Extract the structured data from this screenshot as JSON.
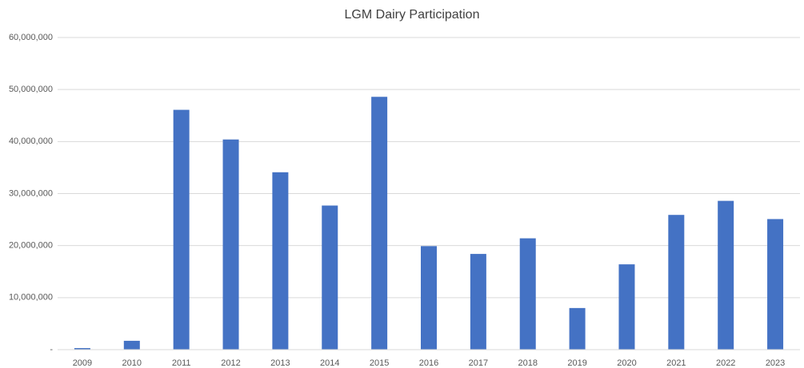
{
  "chart_data": {
    "type": "bar",
    "title": "LGM Dairy Participation",
    "categories": [
      "2009",
      "2010",
      "2011",
      "2012",
      "2013",
      "2014",
      "2015",
      "2016",
      "2017",
      "2018",
      "2019",
      "2020",
      "2021",
      "2022",
      "2023"
    ],
    "values": [
      300000,
      1700000,
      46100000,
      40400000,
      34100000,
      27700000,
      48600000,
      19900000,
      18400000,
      21400000,
      8000000,
      16400000,
      25900000,
      28600000,
      25100000
    ],
    "color": "#4472c4",
    "ylim": [
      0,
      60000000
    ],
    "yticks": [
      {
        "value": 0,
        "label": "-"
      },
      {
        "value": 10000000,
        "label": "10,000,000"
      },
      {
        "value": 20000000,
        "label": "20,000,000"
      },
      {
        "value": 30000000,
        "label": "30,000,000"
      },
      {
        "value": 40000000,
        "label": "40,000,000"
      },
      {
        "value": 50000000,
        "label": "50,000,000"
      },
      {
        "value": 60000000,
        "label": "60,000,000"
      }
    ],
    "grid": true
  }
}
